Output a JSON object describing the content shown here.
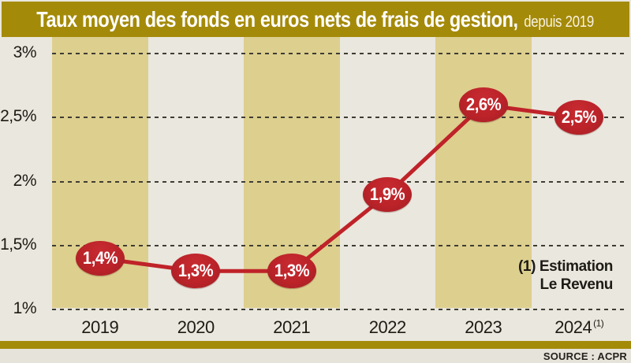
{
  "title": {
    "main": "Taux moyen des fonds en euros nets de frais de gestion,",
    "suffix": "depuis 2019"
  },
  "annotation": {
    "line1": "(1) Estimation",
    "line2": "Le Revenu"
  },
  "source": "SOURCE : ACPR",
  "colors": {
    "title_bar_gold": "#a48a09",
    "stripe_tan": "#ddcf8e",
    "plot_background": "#eae7de",
    "footer_background": "#e6e3da",
    "series_red": "#bf2329",
    "grid_dash": "#3f3c33",
    "text_black": "#1d1b15",
    "title_text": "#ffffff"
  },
  "chart_data": {
    "type": "line",
    "title": "Taux moyen des fonds en euros nets de frais de gestion, depuis 2019",
    "categories": [
      "2019",
      "2020",
      "2021",
      "2022",
      "2023",
      "2024"
    ],
    "category_superscript": {
      "index": 5,
      "text": "(1)"
    },
    "values": [
      1.4,
      1.3,
      1.3,
      1.9,
      2.6,
      2.5
    ],
    "point_labels": [
      "1,4%",
      "1,3%",
      "1,3%",
      "1,9%",
      "2,6%",
      "2,5%"
    ],
    "yticks": [
      {
        "label": "3%",
        "value": 3.0
      },
      {
        "label": "2,5%",
        "value": 2.5
      },
      {
        "label": "2%",
        "value": 2.0
      },
      {
        "label": "1,5%",
        "value": 1.5
      },
      {
        "label": "1%",
        "value": 1.0
      }
    ],
    "ylim": [
      1.0,
      3.0
    ],
    "xlabel": "",
    "ylabel": "",
    "grid": "dashed-horizontal",
    "legend": "none",
    "background_stripes": "alternating vertical tan bands under odd years"
  }
}
